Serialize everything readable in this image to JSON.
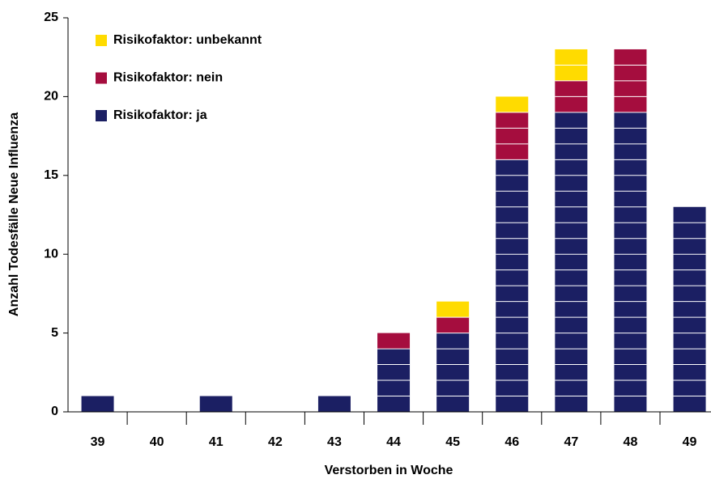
{
  "chart_data": {
    "type": "stacked-bar",
    "xlabel": "Verstorben in Woche",
    "ylabel": "Anzahl Todesfälle Neue Influenza",
    "categories": [
      "39",
      "40",
      "41",
      "42",
      "43",
      "44",
      "45",
      "46",
      "47",
      "48",
      "49"
    ],
    "series": [
      {
        "name": "Risikofaktor: ja",
        "color": "#1b1f63",
        "values": [
          1,
          0,
          1,
          0,
          1,
          4,
          5,
          16,
          19,
          19,
          13
        ]
      },
      {
        "name": "Risikofaktor: nein",
        "color": "#a50d3e",
        "values": [
          0,
          0,
          0,
          0,
          0,
          1,
          1,
          3,
          2,
          4,
          0
        ]
      },
      {
        "name": "Risikofaktor: unbekannt",
        "color": "#ffdb00",
        "values": [
          0,
          0,
          0,
          0,
          0,
          0,
          1,
          1,
          2,
          0,
          0
        ]
      }
    ],
    "ylim": [
      0,
      25
    ],
    "yticks": [
      0,
      5,
      10,
      15,
      20,
      25
    ],
    "legend": "upper left"
  }
}
